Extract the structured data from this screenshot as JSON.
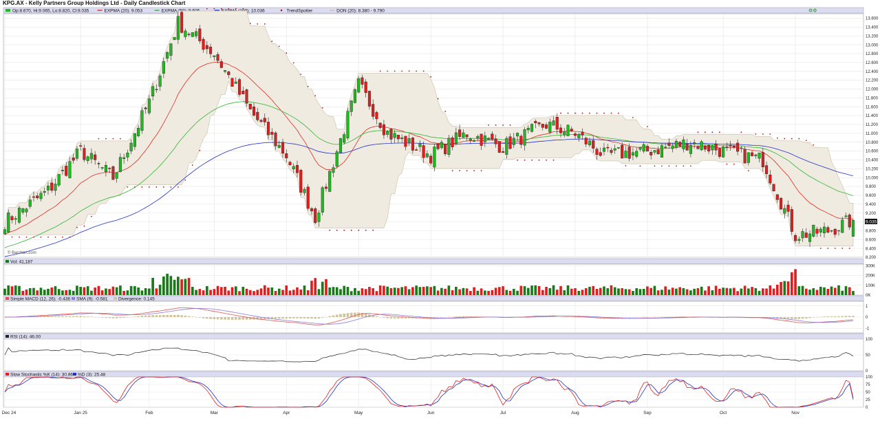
{
  "title": "KPG.AX - Kelly Partners Group Holdings Ltd - Daily Candlestick Chart",
  "watermark": "© Barchart.com",
  "colors": {
    "up": "#22b822",
    "down": "#dd1f1f",
    "expma20": "#e0281f",
    "expma50": "#2fb52f",
    "expma100": "#2230cc",
    "sar": "#b01818",
    "donchian_fill": "#f0ebe0",
    "donchian_edge": "#c9bfa8",
    "macd": "#e05050",
    "macd_signal": "#8a7ad8",
    "divergence": "#cfc49a",
    "rsi": "#222222",
    "stoch_k": "#e02020",
    "stoch_d": "#2030c0",
    "header_bg": "#dcdcf0",
    "last_price_bg": "#111111"
  },
  "main": {
    "legend": [
      {
        "text": "Op:8.670, Hi:9.065, Lo:8.820, Cl:9.035",
        "swatch": "#22b822"
      },
      {
        "text": "EXPMA (20): 9.053",
        "swatch": "#e0281f"
      },
      {
        "text": "EXPMA (50): 9.605",
        "swatch": "#2fb52f"
      },
      {
        "text": "EXPMA (100): 10.036",
        "swatch": "#2230cc"
      },
      {
        "text": "TrendSpotter",
        "swatch": "#b01818"
      },
      {
        "text": "DON (20): 8.380 - 9.790",
        "swatch": "#c9bfa8"
      }
    ],
    "y_ticks": [
      "13.600",
      "13.400",
      "13.200",
      "13.000",
      "12.800",
      "12.600",
      "12.400",
      "12.200",
      "12.000",
      "11.800",
      "11.600",
      "11.400",
      "11.200",
      "11.000",
      "10.800",
      "10.600",
      "10.400",
      "10.200",
      "10.000",
      "9.800",
      "9.600",
      "9.400",
      "9.200",
      "9.000",
      "8.800",
      "8.600",
      "8.400",
      "8.200"
    ],
    "last_price": "9.035"
  },
  "volume": {
    "legend": "Vol: 41,187",
    "y_ticks": [
      "300K",
      "200K",
      "100K",
      "0K"
    ]
  },
  "macd": {
    "legend": [
      "Simple MACD (12, 26): -0.436",
      "SMA (9): -0.581",
      "Divergence: 0.145"
    ],
    "y_ticks": [
      "1",
      "0",
      "-1"
    ]
  },
  "rsi": {
    "legend": "RSI (14): 46.00",
    "y_ticks": [
      "100",
      "50",
      "0"
    ]
  },
  "stoch": {
    "legend": [
      "Slow Stochastic %K (14): 30.86",
      "%D (3): 25.48"
    ],
    "y_ticks": [
      "100",
      "75",
      "50",
      "25",
      "0"
    ]
  },
  "x_labels": [
    "Dec 24",
    "Jan 25",
    "Feb",
    "Mar",
    "Apr",
    "May",
    "Jun",
    "Jul",
    "Aug",
    "Sep",
    "Oct",
    "Nov"
  ],
  "chart_data": {
    "type": "candlestick",
    "title": "KPG.AX - Kelly Partners Group Holdings Ltd - Daily Candlestick Chart",
    "period": "Daily",
    "x_range": [
      "Dec 24",
      "Nov"
    ],
    "ylim": [
      8.2,
      13.7
    ],
    "price_path_keypoints": [
      {
        "date": "Dec 24",
        "close": 9.0
      },
      {
        "date": "Dec 24 (late)",
        "close": 9.7
      },
      {
        "date": "Jan 25",
        "close": 10.6
      },
      {
        "date": "Jan 25 (late)",
        "close": 10.0
      },
      {
        "date": "Feb (early)",
        "close": 11.7
      },
      {
        "date": "Feb (mid)",
        "close": 13.5
      },
      {
        "date": "Mar",
        "close": 12.8
      },
      {
        "date": "Mar (mid)",
        "close": 11.5
      },
      {
        "date": "Apr",
        "close": 9.1
      },
      {
        "date": "May",
        "close": 12.1
      },
      {
        "date": "Jun",
        "close": 10.5
      },
      {
        "date": "Jul",
        "close": 11.0
      },
      {
        "date": "Aug",
        "close": 11.0
      },
      {
        "date": "Sep",
        "close": 10.6
      },
      {
        "date": "Oct",
        "close": 10.6
      },
      {
        "date": "Nov",
        "close": 8.7
      },
      {
        "date": "Nov (last)",
        "close": 9.035
      }
    ],
    "last_bar": {
      "open": 8.67,
      "high": 9.065,
      "low": 8.82,
      "close": 9.035
    },
    "indicators": {
      "EXPMA (20)": 9.053,
      "EXPMA (50)": 9.605,
      "EXPMA (100)": 10.036,
      "DON (20)": [
        8.38,
        9.79
      ],
      "Vol": 41187,
      "Simple MACD (12, 26)": -0.436,
      "SMA (9)": -0.581,
      "Divergence": 0.145,
      "RSI (14)": 46.0,
      "Slow Stochastic %K (14)": 30.86,
      "%D (3)": 25.48
    },
    "volume_ylim": [
      0,
      300000
    ],
    "grid": true
  }
}
